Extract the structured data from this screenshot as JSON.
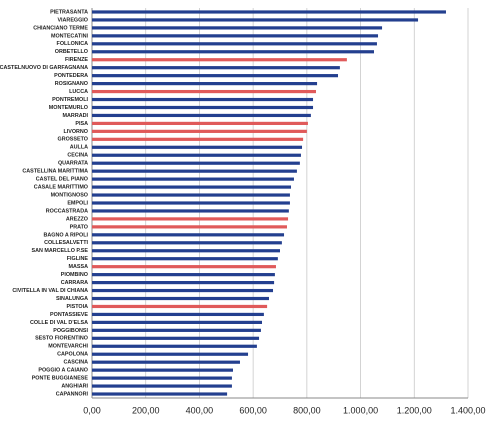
{
  "chart_data": {
    "type": "barh",
    "categories": [
      "PIETRASANTA",
      "VIAREGGIO",
      "CHIANCIANO TERME",
      "MONTECATINI",
      "FOLLONICA",
      "ORBETELLO",
      "FIRENZE",
      "CASTELNUOVO DI GARFAGNANA",
      "PONTEDERA",
      "ROSIGNANO",
      "LUCCA",
      "PONTREMOLI",
      "MONTEMURLO",
      "MARRADI",
      "PISA",
      "LIVORNO",
      "GROSSETO",
      "AULLA",
      "CECINA",
      "QUARRATA",
      "CASTELLINA MARITTIMA",
      "CASTEL DEL PIANO",
      "CASALE MARITTIMO",
      "MONTIGNOSO",
      "EMPOLI",
      "ROCCASTRADA",
      "AREZZO",
      "PRATO",
      "BAGNO A RIPOLI",
      "COLLESALVETTI",
      "SAN MARCELLO P.SE",
      "FIGLINE",
      "MASSA",
      "PIOMBINO",
      "CARRARA",
      "CIVITELLA IN VAL DI CHIANA",
      "SINALUNGA",
      "PISTOIA",
      "PONTASSIEVE",
      "COLLE DI VAL D'ELSA",
      "POGGIBONSI",
      "SESTO FIORENTINO",
      "MONTEVARCHI",
      "CAPOLONA",
      "CASCINA",
      "POGGIO A CAIANO",
      "PONTE BUGGIANESE",
      "ANGHIARI",
      "CAPANNORI"
    ],
    "values": [
      1318,
      1214,
      1080,
      1065,
      1061,
      1050,
      949,
      923,
      916,
      838,
      834,
      823,
      823,
      815,
      804,
      800,
      786,
      782,
      778,
      774,
      763,
      752,
      741,
      737,
      737,
      733,
      730,
      726,
      715,
      707,
      700,
      692,
      685,
      681,
      678,
      674,
      659,
      652,
      640,
      633,
      629,
      622,
      614,
      581,
      551,
      525,
      521,
      521,
      503
    ],
    "colors": [
      "#233f8f",
      "#233f8f",
      "#233f8f",
      "#233f8f",
      "#233f8f",
      "#233f8f",
      "#e05a5a",
      "#233f8f",
      "#233f8f",
      "#233f8f",
      "#e05a5a",
      "#233f8f",
      "#233f8f",
      "#233f8f",
      "#e05a5a",
      "#e05a5a",
      "#e05a5a",
      "#233f8f",
      "#233f8f",
      "#233f8f",
      "#233f8f",
      "#233f8f",
      "#233f8f",
      "#233f8f",
      "#233f8f",
      "#233f8f",
      "#e05a5a",
      "#e05a5a",
      "#233f8f",
      "#233f8f",
      "#233f8f",
      "#233f8f",
      "#e05a5a",
      "#233f8f",
      "#233f8f",
      "#233f8f",
      "#233f8f",
      "#e05a5a",
      "#233f8f",
      "#233f8f",
      "#233f8f",
      "#233f8f",
      "#233f8f",
      "#233f8f",
      "#233f8f",
      "#233f8f",
      "#233f8f",
      "#233f8f",
      "#233f8f"
    ],
    "xlim": [
      0,
      1400
    ],
    "xticks": [
      {
        "value": 0,
        "label": "0,00"
      },
      {
        "value": 200,
        "label": "200,00"
      },
      {
        "value": 400,
        "label": "400,00"
      },
      {
        "value": 600,
        "label": "600,00"
      },
      {
        "value": 800,
        "label": "800,00"
      },
      {
        "value": 1000,
        "label": "1.000,00"
      },
      {
        "value": 1200,
        "label": "1.200,00"
      },
      {
        "value": 1400,
        "label": "1.400,00"
      }
    ],
    "grid": true
  }
}
